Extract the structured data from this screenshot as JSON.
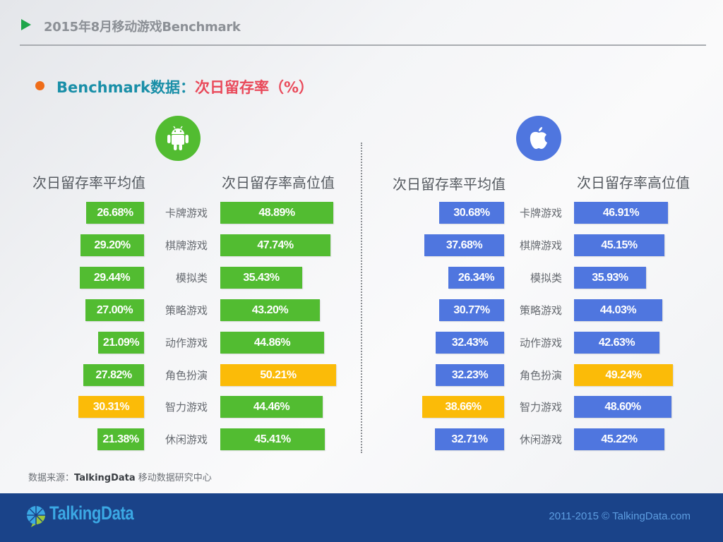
{
  "header": {
    "title": "2015年8月移动游戏Benchmark",
    "icon": "play-triangle-icon",
    "icon_color": "#1fa64a"
  },
  "section": {
    "bullet_color": "#ef6d1a",
    "title_prefix": "Benchmark数据：",
    "title_main": "次日留存率（%）",
    "prefix_color": "#1a8fa8",
    "main_color": "#e9495a"
  },
  "colors": {
    "android": "#52bc31",
    "ios": "#4f76df",
    "highlight": "#fbbb08"
  },
  "panels": {
    "android": {
      "icon": "android-icon",
      "avg_header": "次日留存率平均值",
      "high_header": "次日留存率高位值"
    },
    "ios": {
      "icon": "apple-icon",
      "avg_header": "次日留存率平均值",
      "high_header": "次日留存率高位值"
    }
  },
  "chart_data": {
    "type": "bar",
    "title": "Benchmark数据：次日留存率（%）",
    "orientation": "horizontal",
    "categories": [
      "卡牌游戏",
      "棋牌游戏",
      "模拟类",
      "策略游戏",
      "动作游戏",
      "角色扮演",
      "智力游戏",
      "休闲游戏"
    ],
    "groups": [
      {
        "platform": "Android",
        "series": [
          {
            "name": "次日留存率平均值",
            "values": [
              26.68,
              29.2,
              29.44,
              27.0,
              21.09,
              27.82,
              30.31,
              21.38
            ],
            "labels": [
              "26.68%",
              "29.20%",
              "29.44%",
              "27.00%",
              "21.09%",
              "27.82%",
              "30.31%",
              "21.38%"
            ],
            "highlight_index": 6
          },
          {
            "name": "次日留存率高位值",
            "values": [
              48.89,
              47.74,
              35.43,
              43.2,
              44.86,
              50.21,
              44.46,
              45.41
            ],
            "labels": [
              "48.89%",
              "47.74%",
              "35.43%",
              "43.20%",
              "44.86%",
              "50.21%",
              "44.46%",
              "45.41%"
            ],
            "highlight_index": 5
          }
        ]
      },
      {
        "platform": "iOS",
        "series": [
          {
            "name": "次日留存率平均值",
            "values": [
              30.68,
              37.68,
              26.34,
              30.77,
              32.43,
              32.23,
              38.66,
              32.71
            ],
            "labels": [
              "30.68%",
              "37.68%",
              "26.34%",
              "30.77%",
              "32.43%",
              "32.23%",
              "38.66%",
              "32.71%"
            ],
            "highlight_index": 6
          },
          {
            "name": "次日留存率高位值",
            "values": [
              46.91,
              45.15,
              35.93,
              44.03,
              42.63,
              49.24,
              48.6,
              45.22
            ],
            "labels": [
              "46.91%",
              "45.15%",
              "35.93%",
              "44.03%",
              "42.63%",
              "49.24%",
              "48.60%",
              "45.22%"
            ],
            "highlight_index": 5
          }
        ]
      }
    ],
    "xlabel": "",
    "ylabel": "",
    "grid": false,
    "legend": "none"
  },
  "source": {
    "label": "数据来源：",
    "brand": "TalkingData",
    "rest": " 移动数据研究中心"
  },
  "footer": {
    "logo_text": "TalkingData",
    "copyright": "2011-2015 © TalkingData.com",
    "background": "#1a4389"
  }
}
